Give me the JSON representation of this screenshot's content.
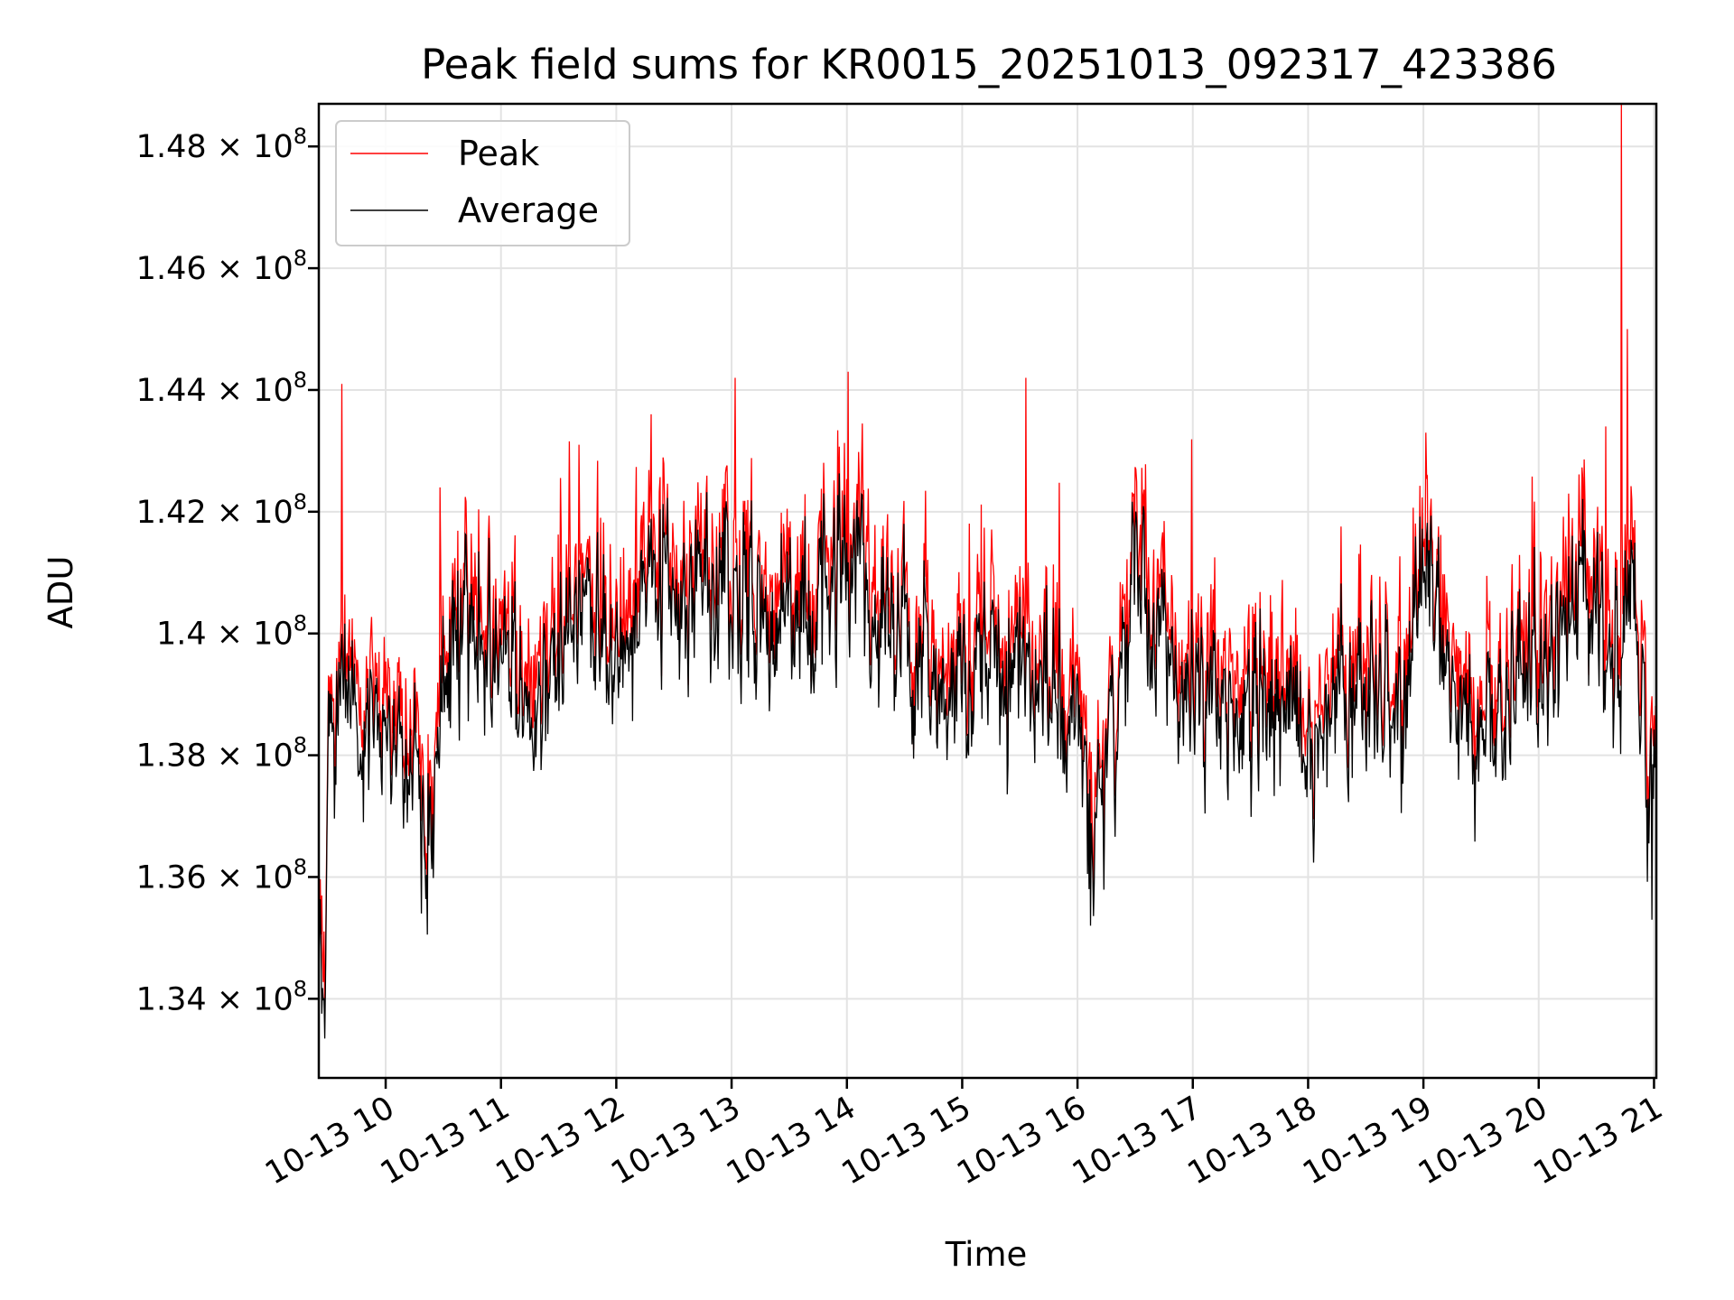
{
  "chart_data": {
    "type": "line",
    "title": "Peak field sums for KR0015_20251013_092317_423386",
    "xlabel": "Time",
    "ylabel": "ADU",
    "grid": true,
    "legend_position": "top-left",
    "xlim": [
      9.42,
      21.02
    ],
    "ylim": [
      132700000,
      148700000
    ],
    "x_tick_values": [
      10,
      11,
      12,
      13,
      14,
      15,
      16,
      17,
      18,
      19,
      20,
      21
    ],
    "x_tick_labels": [
      "10-13 10",
      "10-13 11",
      "10-13 12",
      "10-13 13",
      "10-13 14",
      "10-13 15",
      "10-13 16",
      "10-13 17",
      "10-13 18",
      "10-13 19",
      "10-13 20",
      "10-13 21"
    ],
    "y_ticks": [
      {
        "value": 134000000,
        "mantissa": "1.34",
        "base": "10",
        "exponent": "8"
      },
      {
        "value": 136000000,
        "mantissa": "1.36",
        "base": "10",
        "exponent": "8"
      },
      {
        "value": 138000000,
        "mantissa": "1.38",
        "base": "10",
        "exponent": "8"
      },
      {
        "value": 140000000,
        "mantissa": "1.4",
        "base": "10",
        "exponent": "8"
      },
      {
        "value": 142000000,
        "mantissa": "1.42",
        "base": "10",
        "exponent": "8"
      },
      {
        "value": 144000000,
        "mantissa": "1.44",
        "base": "10",
        "exponent": "8"
      },
      {
        "value": 146000000,
        "mantissa": "1.46",
        "base": "10",
        "exponent": "8"
      },
      {
        "value": 148000000,
        "mantissa": "1.48",
        "base": "10",
        "exponent": "8"
      }
    ],
    "series": [
      {
        "name": "Peak",
        "color": "#ff0000",
        "role": "upper envelope"
      },
      {
        "name": "Average",
        "color": "#000000",
        "role": "baseline"
      }
    ],
    "average_trend": [
      [
        9.42,
        134.6
      ],
      [
        9.45,
        133.8
      ],
      [
        9.5,
        137.5
      ],
      [
        9.6,
        139.0
      ],
      [
        9.8,
        138.2
      ],
      [
        10.0,
        138.5
      ],
      [
        10.15,
        137.8
      ],
      [
        10.3,
        137.0
      ],
      [
        10.4,
        136.8
      ],
      [
        10.5,
        138.8
      ],
      [
        10.7,
        140.0
      ],
      [
        10.9,
        139.6
      ],
      [
        11.1,
        139.8
      ],
      [
        11.2,
        138.3
      ],
      [
        11.4,
        139.0
      ],
      [
        11.6,
        140.1
      ],
      [
        11.8,
        140.3
      ],
      [
        12.0,
        139.5
      ],
      [
        12.2,
        140.8
      ],
      [
        12.4,
        141.0
      ],
      [
        12.6,
        140.2
      ],
      [
        12.8,
        140.5
      ],
      [
        13.0,
        140.9
      ],
      [
        13.2,
        140.8
      ],
      [
        13.4,
        139.5
      ],
      [
        13.6,
        140.8
      ],
      [
        13.8,
        141.0
      ],
      [
        14.0,
        141.3
      ],
      [
        14.1,
        141.5
      ],
      [
        14.2,
        140.3
      ],
      [
        14.4,
        140.0
      ],
      [
        14.6,
        139.3
      ],
      [
        14.8,
        139.1
      ],
      [
        15.0,
        139.0
      ],
      [
        15.2,
        139.5
      ],
      [
        15.4,
        139.3
      ],
      [
        15.6,
        139.2
      ],
      [
        15.8,
        138.8
      ],
      [
        16.0,
        138.7
      ],
      [
        16.1,
        137.5
      ],
      [
        16.2,
        137.3
      ],
      [
        16.3,
        138.4
      ],
      [
        16.5,
        140.8
      ],
      [
        16.7,
        140.0
      ],
      [
        16.9,
        138.9
      ],
      [
        17.0,
        138.8
      ],
      [
        17.2,
        139.3
      ],
      [
        17.4,
        138.5
      ],
      [
        17.6,
        139.2
      ],
      [
        17.8,
        138.6
      ],
      [
        18.0,
        138.3
      ],
      [
        18.2,
        138.9
      ],
      [
        18.4,
        139.0
      ],
      [
        18.6,
        138.8
      ],
      [
        18.8,
        138.5
      ],
      [
        19.0,
        141.2
      ],
      [
        19.2,
        139.3
      ],
      [
        19.4,
        138.3
      ],
      [
        19.6,
        138.4
      ],
      [
        19.8,
        139.5
      ],
      [
        20.0,
        139.5
      ],
      [
        20.2,
        139.8
      ],
      [
        20.4,
        140.6
      ],
      [
        20.6,
        139.7
      ],
      [
        20.8,
        139.8
      ],
      [
        20.9,
        139.4
      ],
      [
        20.95,
        137.5
      ],
      [
        21.02,
        137.3
      ]
    ],
    "peak_annotations": [
      {
        "x": 9.62,
        "y": 144.1
      },
      {
        "x": 10.47,
        "y": 142.4
      },
      {
        "x": 11.68,
        "y": 143.1
      },
      {
        "x": 12.3,
        "y": 143.6
      },
      {
        "x": 13.03,
        "y": 144.2
      },
      {
        "x": 14.01,
        "y": 144.3
      },
      {
        "x": 15.55,
        "y": 144.2
      },
      {
        "x": 19.02,
        "y": 143.3
      },
      {
        "x": 20.72,
        "y": 148.7
      },
      {
        "x": 20.77,
        "y": 145.0
      },
      {
        "x": 20.58,
        "y": 143.4
      }
    ],
    "dip_annotations": [
      {
        "x": 10.31,
        "y": 135.4
      },
      {
        "x": 16.1,
        "y": 135.8
      },
      {
        "x": 20.98,
        "y": 135.3
      }
    ],
    "random_seed": 20251013
  }
}
